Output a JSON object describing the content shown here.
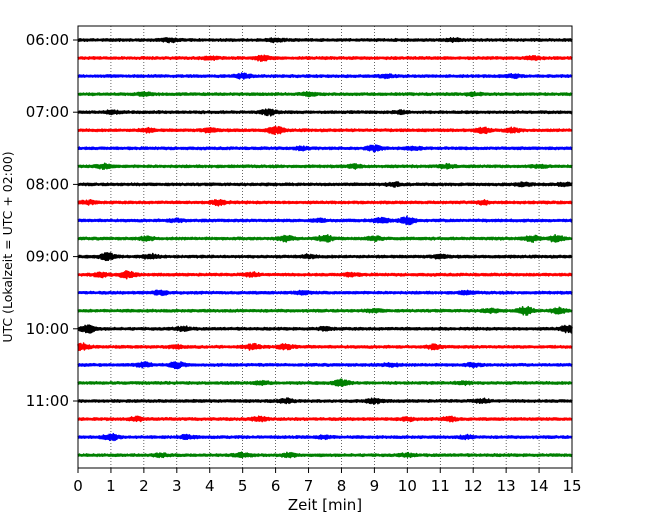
{
  "chart_data": {
    "type": "line",
    "subtype": "helicorder",
    "xlabel": "Zeit  [min]",
    "ylabel": "UTC (Lokalzeit = UTC + 02:00)",
    "xlim": [
      0,
      15
    ],
    "x_ticks": [
      0,
      1,
      2,
      3,
      4,
      5,
      6,
      7,
      8,
      9,
      10,
      11,
      12,
      13,
      14,
      15
    ],
    "grid": "vertical dotted",
    "y_tick_labels": [
      "06:00",
      "07:00",
      "08:00",
      "09:00",
      "10:00",
      "11:00"
    ],
    "trace_interval": "15 min",
    "trace_colors": [
      "#000000",
      "#ff0000",
      "#0000ff",
      "#008000"
    ],
    "traces": [
      {
        "start": "06:00",
        "events": [
          [
            2.8,
            1.6
          ],
          [
            6.0,
            1.3
          ],
          [
            11.4,
            1.2
          ]
        ]
      },
      {
        "start": "06:15",
        "events": [
          [
            5.6,
            2.2
          ],
          [
            4.0,
            1.3
          ],
          [
            13.8,
            1.4
          ]
        ]
      },
      {
        "start": "06:30",
        "events": [
          [
            5.0,
            2.0
          ],
          [
            9.4,
            1.3
          ],
          [
            13.2,
            1.3
          ]
        ]
      },
      {
        "start": "06:45",
        "events": [
          [
            2.0,
            1.5
          ],
          [
            7.0,
            1.3
          ],
          [
            12.0,
            1.3
          ]
        ]
      },
      {
        "start": "07:00",
        "events": [
          [
            5.8,
            2.4
          ],
          [
            1.0,
            1.3
          ],
          [
            9.8,
            1.3
          ]
        ]
      },
      {
        "start": "07:15",
        "events": [
          [
            6.0,
            3.3
          ],
          [
            4.0,
            1.8
          ],
          [
            12.3,
            2.4
          ],
          [
            13.2,
            1.7
          ],
          [
            2.1,
            1.5
          ]
        ]
      },
      {
        "start": "07:30",
        "events": [
          [
            9.0,
            2.4
          ],
          [
            6.8,
            1.3
          ],
          [
            10.2,
            1.4
          ]
        ]
      },
      {
        "start": "07:45",
        "events": [
          [
            0.8,
            2.0
          ],
          [
            8.4,
            1.6
          ],
          [
            11.2,
            1.6
          ],
          [
            14.0,
            1.2
          ]
        ]
      },
      {
        "start": "08:00",
        "events": [
          [
            9.6,
            1.7
          ],
          [
            13.5,
            1.5
          ],
          [
            14.8,
            1.4
          ]
        ]
      },
      {
        "start": "08:15",
        "events": [
          [
            4.3,
            2.4
          ],
          [
            0.3,
            1.7
          ],
          [
            12.3,
            1.4
          ]
        ]
      },
      {
        "start": "08:30",
        "events": [
          [
            10.0,
            3.3
          ],
          [
            9.2,
            2.4
          ],
          [
            3.0,
            1.4
          ],
          [
            7.3,
            1.3
          ]
        ]
      },
      {
        "start": "08:45",
        "events": [
          [
            7.5,
            3.0
          ],
          [
            6.3,
            2.5
          ],
          [
            14.5,
            2.8
          ],
          [
            13.8,
            2.5
          ],
          [
            9.0,
            1.9
          ],
          [
            2.1,
            1.5
          ]
        ]
      },
      {
        "start": "09:00",
        "events": [
          [
            2.2,
            2.3
          ],
          [
            0.9,
            3.3
          ],
          [
            11.0,
            1.6
          ],
          [
            7.0,
            1.4
          ]
        ]
      },
      {
        "start": "09:15",
        "events": [
          [
            1.5,
            3.0
          ],
          [
            0.7,
            2.2
          ],
          [
            5.3,
            1.5
          ],
          [
            8.3,
            1.5
          ]
        ]
      },
      {
        "start": "09:30",
        "events": [
          [
            2.5,
            1.8
          ],
          [
            6.8,
            1.3
          ],
          [
            11.8,
            1.3
          ]
        ]
      },
      {
        "start": "09:45",
        "events": [
          [
            13.6,
            3.5
          ],
          [
            14.6,
            2.5
          ],
          [
            12.5,
            1.6
          ],
          [
            9.0,
            1.3
          ]
        ]
      },
      {
        "start": "10:00",
        "events": [
          [
            0.3,
            3.3
          ],
          [
            14.9,
            3.3
          ],
          [
            3.2,
            1.7
          ],
          [
            7.5,
            1.3
          ]
        ]
      },
      {
        "start": "10:15",
        "events": [
          [
            5.3,
            2.4
          ],
          [
            6.3,
            1.9
          ],
          [
            0.1,
            3.0
          ],
          [
            10.8,
            1.7
          ],
          [
            3.0,
            1.3
          ]
        ]
      },
      {
        "start": "10:30",
        "events": [
          [
            3.0,
            2.6
          ],
          [
            2.0,
            1.9
          ],
          [
            9.5,
            1.6
          ],
          [
            12.0,
            1.3
          ]
        ]
      },
      {
        "start": "10:45",
        "events": [
          [
            8.0,
            3.0
          ],
          [
            5.6,
            1.3
          ],
          [
            11.7,
            1.3
          ]
        ]
      },
      {
        "start": "11:00",
        "events": [
          [
            9.0,
            2.0
          ],
          [
            6.3,
            1.8
          ],
          [
            12.3,
            1.4
          ]
        ]
      },
      {
        "start": "11:15",
        "events": [
          [
            1.8,
            1.6
          ],
          [
            5.5,
            2.0
          ],
          [
            11.3,
            2.0
          ],
          [
            10.0,
            1.4
          ]
        ]
      },
      {
        "start": "11:30",
        "events": [
          [
            1.0,
            3.0
          ],
          [
            3.3,
            1.6
          ],
          [
            7.5,
            1.3
          ],
          [
            11.8,
            1.3
          ]
        ]
      },
      {
        "start": "11:45",
        "events": [
          [
            5.0,
            1.7
          ],
          [
            6.4,
            1.8
          ],
          [
            10.0,
            1.3
          ],
          [
            2.5,
            1.3
          ]
        ]
      }
    ]
  }
}
